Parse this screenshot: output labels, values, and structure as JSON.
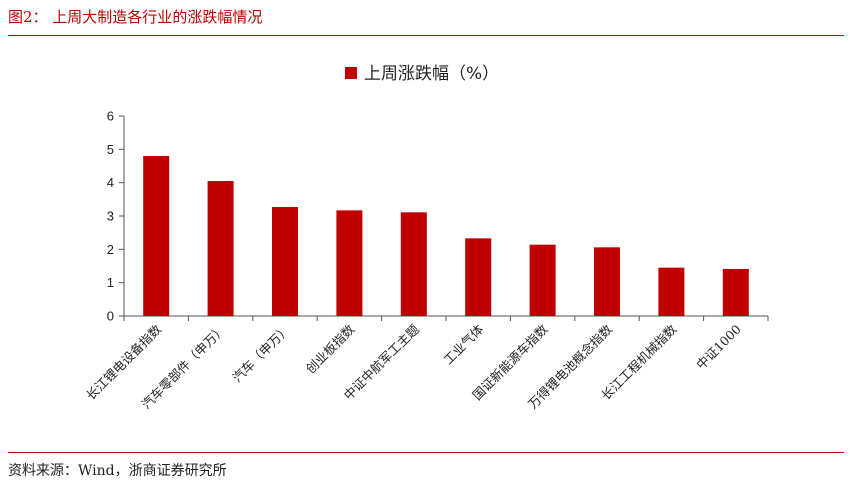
{
  "header": {
    "figure_title": "图2： 上周大制造各行业的涨跌幅情况"
  },
  "footer": {
    "source": "资料来源：Wind，浙商证券研究所"
  },
  "colors": {
    "accent": "#c00000",
    "bar": "#c00000"
  },
  "chart_data": {
    "type": "bar",
    "title": "",
    "xlabel": "",
    "ylabel": "",
    "legend_position": "top-center",
    "grid": false,
    "categories": [
      "长江锂电设备指数",
      "汽车零部件（申万）",
      "汽车（申万）",
      "创业板指数",
      "中证中航军工主题",
      "工业气体",
      "国证新能源车指数",
      "万得锂电池概念指数",
      "长江工程机械指数",
      "中证1000"
    ],
    "series": [
      {
        "name": "上周涨跌幅（%）",
        "values": [
          4.8,
          4.05,
          3.27,
          3.17,
          3.11,
          2.33,
          2.14,
          2.06,
          1.45,
          1.41
        ]
      }
    ],
    "ylim": [
      0,
      6
    ],
    "yticks": [
      0,
      1,
      2,
      3,
      4,
      5,
      6
    ]
  }
}
